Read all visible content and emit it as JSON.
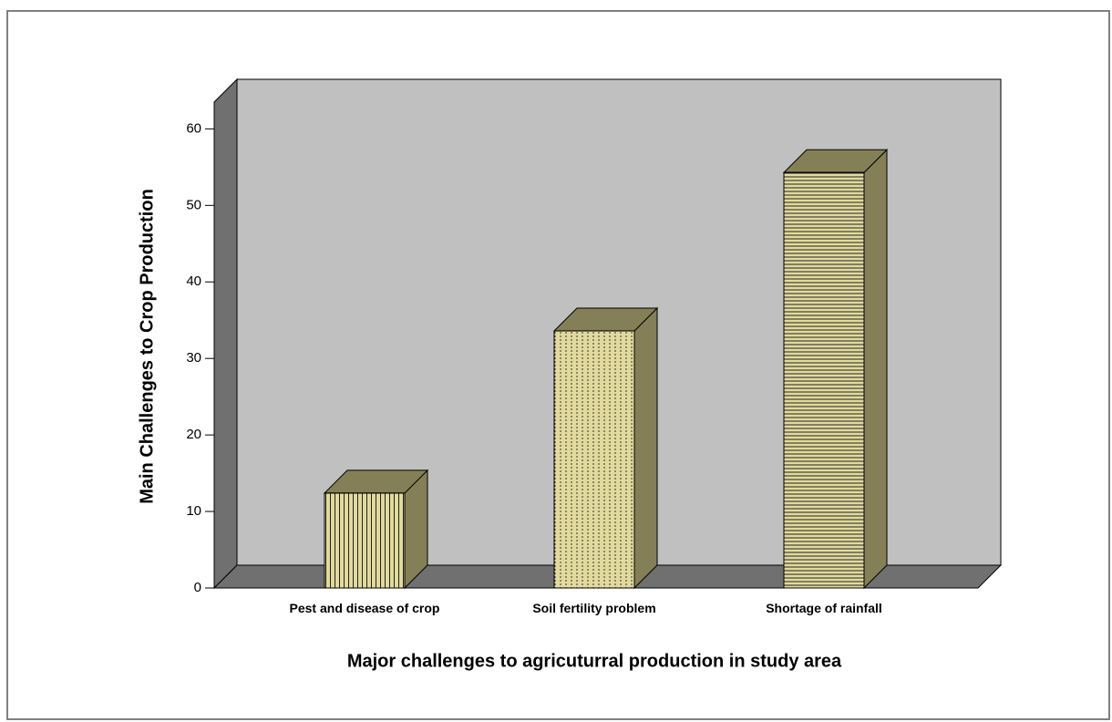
{
  "chart_data": {
    "type": "bar3d",
    "x_label": "Major challenges to agricuturral production in study area",
    "y_label": "Main Challenges  to Crop Production",
    "categories": [
      "Pest and disease of crop",
      "Soil fertility problem",
      "Shortage of rainfall"
    ],
    "values": [
      12.4,
      33.6,
      54.3
    ],
    "color": "#e2da9c",
    "ylim": [
      0,
      63.5
    ],
    "yticks": [
      0,
      10,
      20,
      30,
      40,
      50,
      60
    ]
  }
}
